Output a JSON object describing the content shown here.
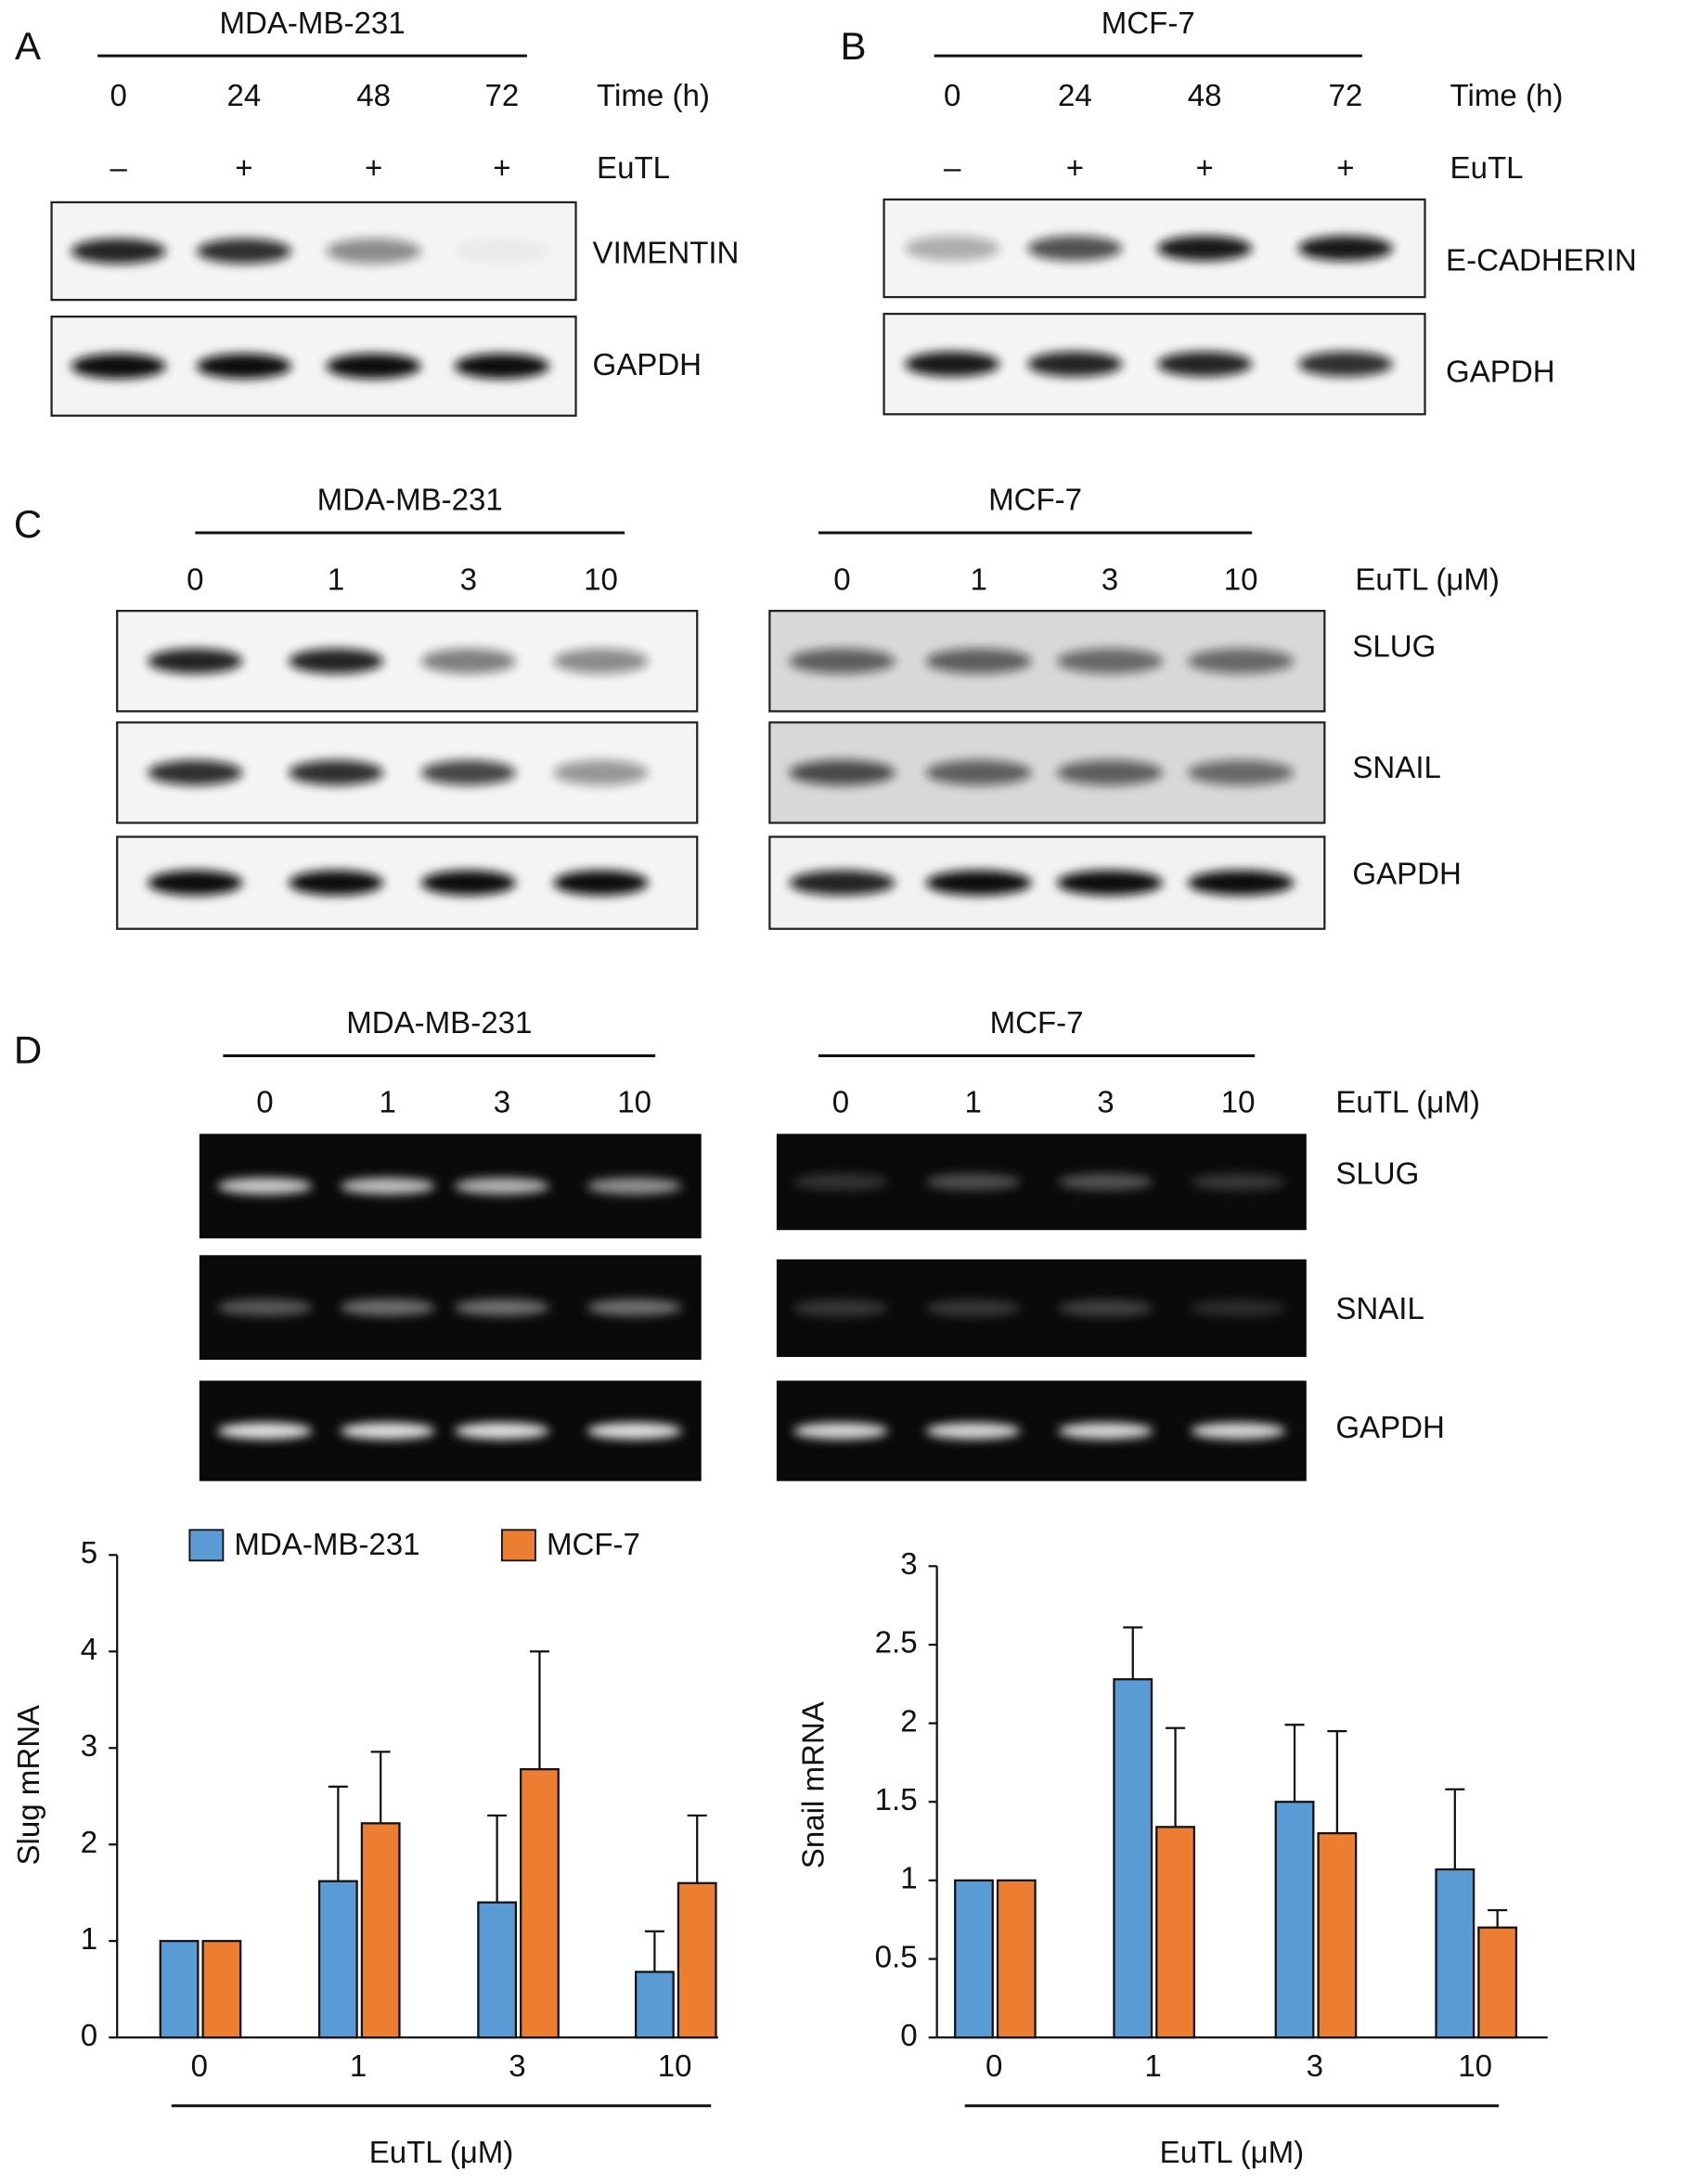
{
  "panels": {
    "A": {
      "letter": "A",
      "cell_line": "MDA-MB-231",
      "times": [
        "0",
        "24",
        "48",
        "72"
      ],
      "time_label": "Time (h)",
      "treatment": [
        "–",
        "+",
        "+",
        "+"
      ],
      "treatment_label": "EuTL",
      "blots": [
        "VIMENTIN",
        "GAPDH"
      ]
    },
    "B": {
      "letter": "B",
      "cell_line": "MCF-7",
      "times": [
        "0",
        "24",
        "48",
        "72"
      ],
      "time_label": "Time (h)",
      "treatment": [
        "–",
        "+",
        "+",
        "+"
      ],
      "treatment_label": "EuTL",
      "blots": [
        "E-CADHERIN",
        "GAPDH"
      ]
    },
    "C": {
      "letter": "C",
      "left_cell_line": "MDA-MB-231",
      "right_cell_line": "MCF-7",
      "left_doses": [
        "0",
        "1",
        "3",
        "10"
      ],
      "right_doses": [
        "0",
        "1",
        "3",
        "10"
      ],
      "dose_label": "EuTL (μM)",
      "blots": [
        "SLUG",
        "SNAIL",
        "GAPDH"
      ]
    },
    "D": {
      "letter": "D",
      "left_cell_line": "MDA-MB-231",
      "right_cell_line": "MCF-7",
      "left_doses": [
        "0",
        "1",
        "3",
        "10"
      ],
      "right_doses": [
        "0",
        "1",
        "3",
        "10"
      ],
      "dose_label": "EuTL (μM)",
      "gels": [
        "SLUG",
        "SNAIL",
        "GAPDH"
      ]
    }
  },
  "chart_data": [
    {
      "type": "bar",
      "ylabel": "Slug mRNA",
      "xlabel": "EuTL (μM)",
      "categories": [
        "0",
        "1",
        "3",
        "10"
      ],
      "ylim": [
        0,
        5
      ],
      "yticks": [
        0,
        1,
        2,
        3,
        4,
        5
      ],
      "legend": "top-left",
      "series": [
        {
          "name": "MDA-MB-231",
          "color": "#5b9bd5",
          "values": [
            1,
            1.62,
            1.4,
            0.68
          ],
          "errors": [
            null,
            0.98,
            0.9,
            0.42
          ]
        },
        {
          "name": "MCF-7",
          "color": "#ed7d31",
          "values": [
            1,
            2.22,
            2.78,
            1.6
          ],
          "errors": [
            null,
            0.74,
            1.22,
            0.7
          ]
        }
      ]
    },
    {
      "type": "bar",
      "ylabel": "Snail mRNA",
      "xlabel": "EuTL (μM)",
      "categories": [
        "0",
        "1",
        "3",
        "10"
      ],
      "ylim": [
        0,
        3
      ],
      "yticks": [
        0,
        0.5,
        1,
        1.5,
        2,
        2.5,
        3
      ],
      "series": [
        {
          "color": "#5b9bd5",
          "values": [
            1,
            2.28,
            1.5,
            1.07
          ],
          "errors": [
            null,
            0.33,
            0.49,
            0.51
          ]
        },
        {
          "color": "#ed7d31",
          "values": [
            1,
            1.34,
            1.3,
            0.7
          ],
          "errors": [
            null,
            0.63,
            0.65,
            0.11
          ]
        }
      ]
    }
  ]
}
